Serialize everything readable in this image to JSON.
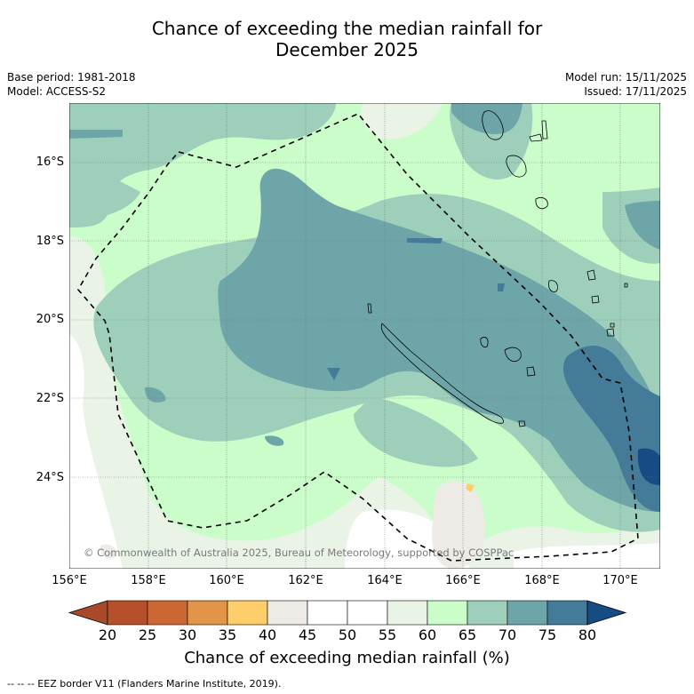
{
  "title_line1": "Chance of exceeding the median rainfall for",
  "title_line2": "December 2025",
  "base_period": "Base period: 1981-2018",
  "model": "Model: ACCESS-S2",
  "model_run": "Model run: 15/11/2025",
  "issued": "Issued: 17/11/2025",
  "copyright": "© Commonwealth of Australia 2025, Bureau of Meteorology, supported by COSPPac",
  "lat_labels": [
    "16°S",
    "18°S",
    "20°S",
    "22°S",
    "24°S"
  ],
  "lon_labels": [
    "156°E",
    "158°E",
    "160°E",
    "162°E",
    "164°E",
    "166°E",
    "168°E",
    "170°E"
  ],
  "colorbar": {
    "ticks": [
      "20",
      "25",
      "30",
      "35",
      "40",
      "45",
      "50",
      "55",
      "60",
      "65",
      "70",
      "75",
      "80"
    ],
    "colors": [
      "#a8492a",
      "#b5502b",
      "#cc6733",
      "#e29548",
      "#fece6a",
      "#eeeae5",
      "#ffffff",
      "#ffffff",
      "#e9f4e6",
      "#cbfdcb",
      "#9dcfba",
      "#6ea5a8",
      "#437b98",
      "#164b83"
    ],
    "title": "Chance of exceeding median rainfall (%)"
  },
  "footnote": "--  --  -- EEZ border V11 (Flanders Marine Institute, 2019).",
  "colors": {
    "band_55_60": "#e9f4e6",
    "band_60_65": "#cbfdcb",
    "band_65_70": "#9dcfba",
    "band_70_75": "#6ea5a8",
    "band_75_80": "#437b98",
    "band_80_plus": "#164b83",
    "band_40_45": "#eeeae5",
    "band_35_40": "#fece6a"
  }
}
